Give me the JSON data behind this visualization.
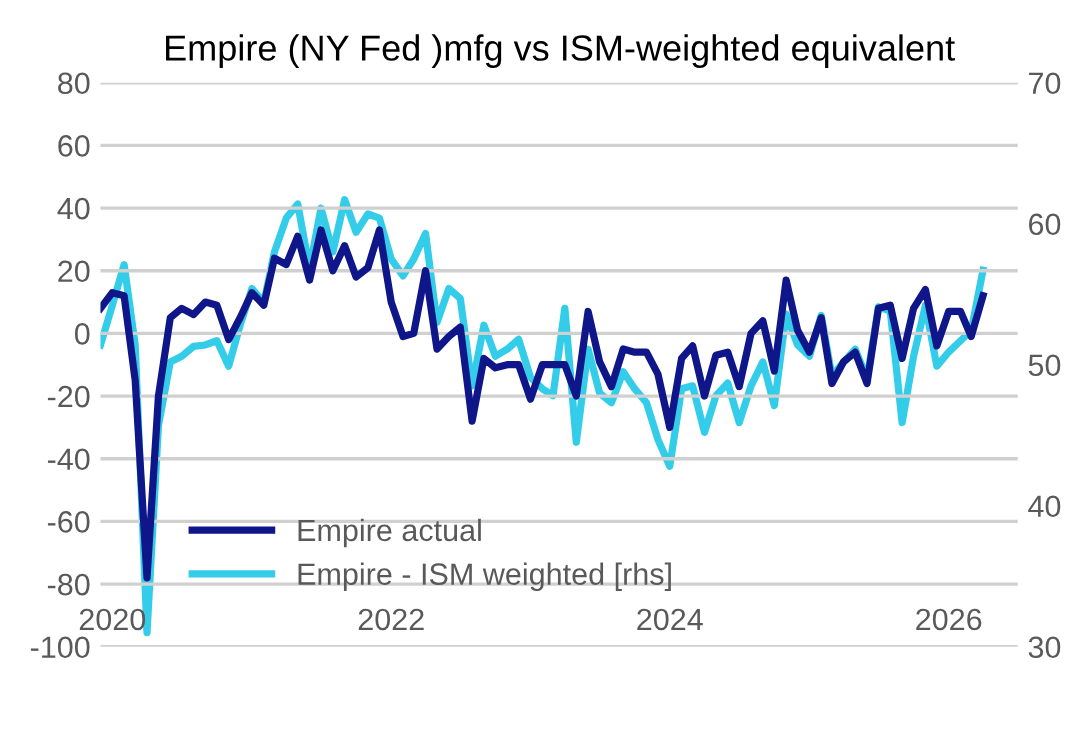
{
  "chart_data": {
    "type": "line",
    "title": "Empire (NY Fed )mfg vs ISM-weighted equivalent",
    "x": [
      "2019-12",
      "2020-01",
      "2020-02",
      "2020-03",
      "2020-04",
      "2020-05",
      "2020-06",
      "2020-07",
      "2020-08",
      "2020-09",
      "2020-10",
      "2020-11",
      "2020-12",
      "2021-01",
      "2021-02",
      "2021-03",
      "2021-04",
      "2021-05",
      "2021-06",
      "2021-07",
      "2021-08",
      "2021-09",
      "2021-10",
      "2021-11",
      "2021-12",
      "2022-01",
      "2022-02",
      "2022-03",
      "2022-04",
      "2022-05",
      "2022-06",
      "2022-07",
      "2022-08",
      "2022-09",
      "2022-10",
      "2022-11",
      "2022-12",
      "2023-01",
      "2023-02",
      "2023-03",
      "2023-04",
      "2023-05",
      "2023-06",
      "2023-07",
      "2023-08",
      "2023-09",
      "2023-10",
      "2023-11",
      "2023-12",
      "2024-01",
      "2024-02",
      "2024-03",
      "2024-04",
      "2024-05",
      "2024-06",
      "2024-07",
      "2024-08",
      "2024-09",
      "2024-10",
      "2024-11",
      "2024-12",
      "2025-01",
      "2025-02",
      "2025-03",
      "2025-04",
      "2025-05",
      "2025-06",
      "2025-07",
      "2025-08",
      "2025-09",
      "2025-10",
      "2025-11",
      "2025-12",
      "2026-01",
      "2026-02",
      "2026-03",
      "2026-04"
    ],
    "series": [
      {
        "name": "Empire actual",
        "color": "#0f1689",
        "values": [
          8,
          13,
          12,
          -15,
          -78,
          -20,
          5,
          8,
          6,
          10,
          9,
          -2,
          5,
          13,
          9,
          24,
          22,
          31,
          17,
          33,
          20,
          28,
          18,
          21,
          33,
          10,
          -1,
          0,
          20,
          -5,
          -1,
          2,
          -28,
          -8,
          -11,
          -10,
          -10,
          -21,
          -10,
          -10,
          -10,
          -20,
          7,
          -9,
          -17,
          -5,
          -6,
          -6,
          -13,
          -30,
          -8,
          -4,
          -20,
          -7,
          -6,
          -17,
          0,
          4,
          -12,
          17,
          1,
          -6,
          5,
          -16,
          -9,
          -6,
          -16,
          8,
          9,
          -8,
          8,
          14,
          -4,
          7,
          7,
          -1,
          12
        ]
      },
      {
        "name": "Empire - ISM weighted [rhs]",
        "color": "#33cdea",
        "axis": "y2",
        "values": [
          51.4,
          54.2,
          57.1,
          51.4,
          31.0,
          45.7,
          50.2,
          50.6,
          51.3,
          51.4,
          51.7,
          49.9,
          52.8,
          55.4,
          54.4,
          58.0,
          60.4,
          61.4,
          56.8,
          61.1,
          58.0,
          61.7,
          59.4,
          60.7,
          60.4,
          57.5,
          56.3,
          57.5,
          59.3,
          53.0,
          55.4,
          54.7,
          48.5,
          52.8,
          50.6,
          51.1,
          51.8,
          49.1,
          48.3,
          47.8,
          54.0,
          44.5,
          51.1,
          48.0,
          47.3,
          49.5,
          48.3,
          47.3,
          44.7,
          42.8,
          48.3,
          48.5,
          45.2,
          47.8,
          48.7,
          45.9,
          48.5,
          50.2,
          47.1,
          53.6,
          51.4,
          50.6,
          53.5,
          49.2,
          50.2,
          51.1,
          49.0,
          54.1,
          53.8,
          45.9,
          50.6,
          54.2,
          49.9,
          50.9,
          51.7,
          52.4,
          56.7
        ]
      }
    ],
    "xlim": [
      "2019-12",
      "2026-07"
    ],
    "xticks": [
      {
        "value": "2020-01",
        "label": "2020"
      },
      {
        "value": "2022-01",
        "label": "2022"
      },
      {
        "value": "2024-01",
        "label": "2024"
      },
      {
        "value": "2026-01",
        "label": "2026"
      }
    ],
    "ylim": [
      -100,
      80
    ],
    "yticks": [
      -100,
      -80,
      -60,
      -40,
      -20,
      0,
      20,
      40,
      60,
      80
    ],
    "y2lim": [
      30,
      70
    ],
    "y2ticks": [
      30,
      40,
      50,
      60,
      70
    ],
    "grid": "y",
    "legend": "bottom left",
    "marker": "none",
    "line_style": "solid"
  }
}
